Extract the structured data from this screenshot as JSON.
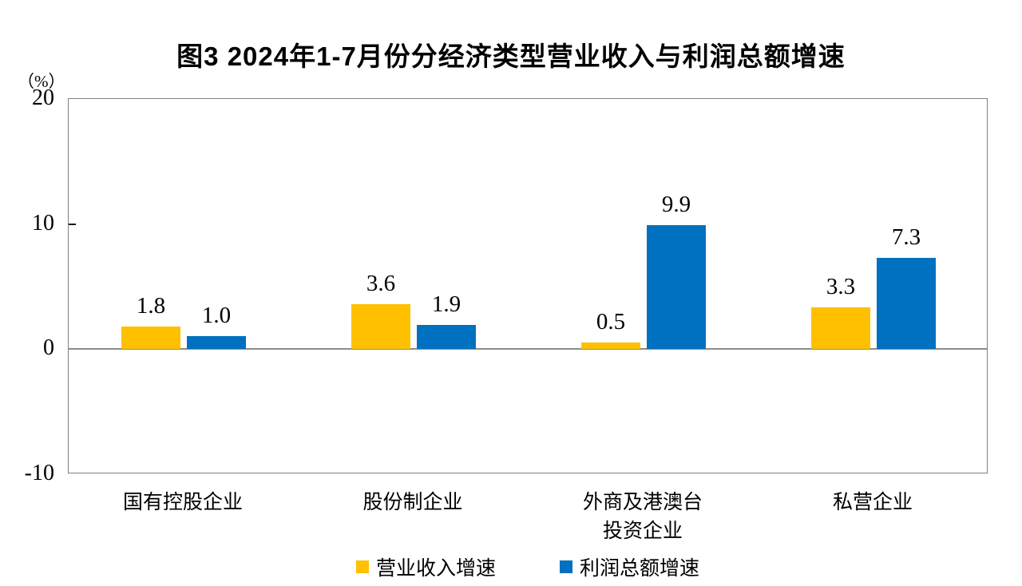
{
  "chart_data": {
    "type": "bar",
    "title": "图3 2024年1-7月份分经济类型营业收入与利润总额增速",
    "unit": "（%）",
    "categories": [
      "国有控股企业",
      "股份制企业",
      "外商及港澳台投资企业",
      "私营企业"
    ],
    "categories_display": [
      [
        "国有控股企业"
      ],
      [
        "股份制企业"
      ],
      [
        "外商及港澳台",
        "投资企业"
      ],
      [
        "私营企业"
      ]
    ],
    "series": [
      {
        "name": "营业收入增速",
        "color": "#FFC000",
        "values": [
          1.8,
          3.6,
          0.5,
          3.3
        ]
      },
      {
        "name": "利润总额增速",
        "color": "#0070C0",
        "values": [
          1.0,
          1.9,
          9.9,
          7.3
        ]
      }
    ],
    "data_labels": true,
    "ylim": [
      -10,
      20
    ],
    "y_ticks": [
      20,
      10,
      0,
      -10
    ],
    "grid": false,
    "zero_line": true,
    "legend_position": "bottom",
    "colors": {
      "plot_border": "#808080",
      "zero_line": "#8c8c8c",
      "tick": "#1a1a1a",
      "text": "#000000",
      "background": "#ffffff"
    }
  }
}
